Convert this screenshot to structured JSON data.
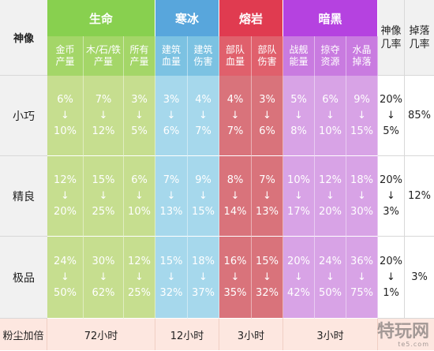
{
  "header": {
    "deity_label": "神像",
    "groups": [
      {
        "name": "生命",
        "color": "#88d04f"
      },
      {
        "name": "寒冰",
        "color": "#58a6dc"
      },
      {
        "name": "熔岩",
        "color": "#e03b50"
      },
      {
        "name": "暗黑",
        "color": "#b542e0"
      }
    ],
    "subheaders": [
      "金币\n产量",
      "木/石/铁\n产量",
      "所有\n产量",
      "建筑\n血量",
      "建筑\n伤害",
      "部队\n血量",
      "部队\n伤害",
      "战舰\n能量",
      "掠夺\n资源",
      "水晶\n掉落"
    ],
    "deity_rate": "神像\n几率",
    "drop_rate": "掉落\n几率"
  },
  "rows": [
    {
      "name": "小巧",
      "values": [
        [
          "6%",
          "10%"
        ],
        [
          "7%",
          "12%"
        ],
        [
          "3%",
          "5%"
        ],
        [
          "3%",
          "6%"
        ],
        [
          "4%",
          "7%"
        ],
        [
          "4%",
          "7%"
        ],
        [
          "3%",
          "6%"
        ],
        [
          "5%",
          "8%"
        ],
        [
          "6%",
          "10%"
        ],
        [
          "9%",
          "15%"
        ]
      ],
      "deity_rate": [
        "20%",
        "5%"
      ],
      "drop_rate": "85%"
    },
    {
      "name": "精良",
      "values": [
        [
          "12%",
          "20%"
        ],
        [
          "15%",
          "25%"
        ],
        [
          "6%",
          "10%"
        ],
        [
          "7%",
          "13%"
        ],
        [
          "9%",
          "15%"
        ],
        [
          "8%",
          "14%"
        ],
        [
          "7%",
          "13%"
        ],
        [
          "10%",
          "17%"
        ],
        [
          "12%",
          "20%"
        ],
        [
          "18%",
          "30%"
        ]
      ],
      "deity_rate": [
        "20%",
        "3%"
      ],
      "drop_rate": "12%"
    },
    {
      "name": "极品",
      "values": [
        [
          "24%",
          "50%"
        ],
        [
          "30%",
          "62%"
        ],
        [
          "12%",
          "25%"
        ],
        [
          "15%",
          "32%"
        ],
        [
          "18%",
          "37%"
        ],
        [
          "16%",
          "35%"
        ],
        [
          "15%",
          "32%"
        ],
        [
          "20%",
          "42%"
        ],
        [
          "24%",
          "50%"
        ],
        [
          "36%",
          "75%"
        ]
      ],
      "deity_rate": [
        "20%",
        "1%"
      ],
      "drop_rate": "3%"
    }
  ],
  "arrow": "↓",
  "footer": {
    "label": "粉尘加倍",
    "durations": [
      "72小时",
      "12小时",
      "3小时",
      "3小时"
    ]
  },
  "colors": {
    "life_body": "#c6de8f",
    "ice_body": "#a6d8ec",
    "lava_body": "#d9737b",
    "dark_body": "#d8a3e6",
    "life_sub": "#a4d668",
    "ice_sub": "#7cc2e2",
    "lava_sub": "#e0606c",
    "dark_sub": "#c97be0"
  },
  "watermark": {
    "text": "特玩网",
    "sub": "te5.com"
  }
}
